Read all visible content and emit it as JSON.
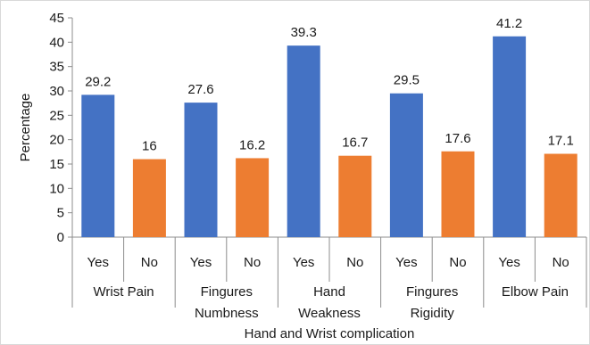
{
  "chart_data": {
    "type": "bar",
    "title": "",
    "xlabel": "Hand and Wrist complication",
    "ylabel": "Percentage",
    "ylim": [
      0,
      45
    ],
    "yticks": [
      0,
      5,
      10,
      15,
      20,
      25,
      30,
      35,
      40,
      45
    ],
    "grid": false,
    "legend": "none",
    "groups": [
      {
        "label_lines": [
          "Wrist Pain"
        ],
        "categories": [
          "Yes",
          "No"
        ],
        "values": [
          29.2,
          16
        ],
        "value_labels": [
          "29.2",
          "16"
        ]
      },
      {
        "label_lines": [
          "Fingures",
          "Numbness"
        ],
        "categories": [
          "Yes",
          "No"
        ],
        "values": [
          27.6,
          16.2
        ],
        "value_labels": [
          "27.6",
          "16.2"
        ]
      },
      {
        "label_lines": [
          "Hand",
          "Weakness"
        ],
        "categories": [
          "Yes",
          "No"
        ],
        "values": [
          39.3,
          16.7
        ],
        "value_labels": [
          "39.3",
          "16.7"
        ]
      },
      {
        "label_lines": [
          "Fingures",
          "Rigidity"
        ],
        "categories": [
          "Yes",
          "No"
        ],
        "values": [
          29.5,
          17.6
        ],
        "value_labels": [
          "29.5",
          "17.6"
        ]
      },
      {
        "label_lines": [
          "Elbow Pain"
        ],
        "categories": [
          "Yes",
          "No"
        ],
        "values": [
          41.2,
          17.1
        ],
        "value_labels": [
          "41.2",
          "17.1"
        ]
      }
    ],
    "colors": {
      "Yes": "#4472C4",
      "No": "#ED7D31",
      "axis": "#8c8c8c",
      "border": "#d9d9d9"
    }
  }
}
